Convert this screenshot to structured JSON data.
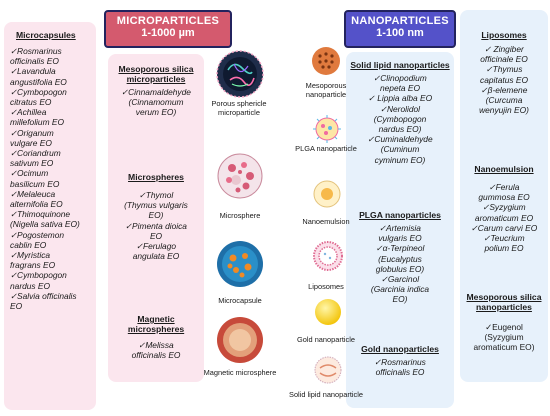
{
  "microcapsules": {
    "title": "Microcapsules",
    "items": [
      "✓Rosmarinus",
      "officinalis EO",
      "✓Lavandula",
      "angustifolia EO",
      "✓Cymbopogon",
      "citratus EO",
      "✓Achillea",
      "millefolium EO",
      "✓Origanum",
      "vulgare EO",
      "✓Coriandrum",
      "sativum EO",
      "✓Ocimum",
      "basilicum EO",
      "✓Melaleuca",
      "alternifolia EO",
      "✓Thimoquinone",
      "(Nigella sativa EO)",
      "✓Pogostemon",
      "cablin EO",
      "✓Myristica",
      "fragrans EO",
      "✓Cymbopogon",
      "nardus EO",
      "✓Salvia officinalis",
      "EO"
    ]
  },
  "microparticles_header": {
    "title": "MICROPARTICLES",
    "range": "1-1000 µm"
  },
  "nanoparticles_header": {
    "title": "NANOPARTICLES",
    "range": "1-100 nm"
  },
  "micro_sections": [
    {
      "title": "Mesoporous silica microparticles",
      "items": [
        "✓Cinnamaldehyde",
        "(Cinnamomum",
        "verum EO)"
      ]
    },
    {
      "title": "Microspheres",
      "items": [
        "✓Thymol",
        "(Thymus vulgaris",
        "EO)",
        "✓Pimenta dioica",
        "EO",
        "✓Ferulago",
        "angulata EO"
      ]
    },
    {
      "title": "Magnetic microspheres",
      "items": [
        "✓Melissa",
        "officinalis EO"
      ]
    }
  ],
  "micro_labels": [
    "Porous sphericle microparticle",
    "Microsphere",
    "Microcapsule",
    "Magnetic microsphere"
  ],
  "nano_labels": [
    "Mesoporous nanoparticle",
    "PLGA nanoparticle",
    "Nanoemulsion",
    "Liposomes",
    "Gold nanoparticle",
    "Solid lipid nanoparticle"
  ],
  "nano_sections": [
    {
      "title": "Solid lipid nanoparticles",
      "items": [
        "✓Clinopodium",
        "nepeta EO",
        "✓ Lippia alba EO",
        "✓Nerolidol",
        "(Cymbopogon",
        "nardus EO)",
        "✓Cuminaldehyde",
        "(Cuminum",
        "cyminum EO)"
      ]
    },
    {
      "title": "PLGA nanoparticles",
      "items": [
        "✓Artemisia",
        "vulgaris EO",
        "✓α-Terpineol",
        "(Eucalyptus",
        "globulus EO)",
        "✓Garcinol",
        "(Garcinia indica",
        "EO)"
      ]
    },
    {
      "title": "Gold nanoparticles",
      "items": [
        "✓Rosmarinus",
        "officinalis EO"
      ]
    }
  ],
  "right_sections": [
    {
      "title": "Liposomes",
      "items": [
        "✓ Zingiber",
        "officinale EO",
        "✓Thymus",
        "capitatus EO",
        "✓β-elemene",
        "(Curcuma",
        "wenyujin EO)"
      ]
    },
    {
      "title": "Nanoemulsion",
      "items": [
        "✓Ferula",
        "gummosa EO",
        "✓Syzygium",
        "aromaticum EO",
        "✓Carum carvi EO",
        "✓Teucrium",
        "polium EO"
      ]
    },
    {
      "title": "Mesoporous silica nanoparticles",
      "items": [
        "✓Eugenol",
        "(Syzygium",
        "aromaticum EO)"
      ]
    }
  ],
  "colors": {
    "pink_panel": "#fbe6ee",
    "blue_panel": "#e7f1fb",
    "micro_header": "#d45a6e",
    "nano_header": "#5452c9",
    "header_border": "#23235e"
  }
}
